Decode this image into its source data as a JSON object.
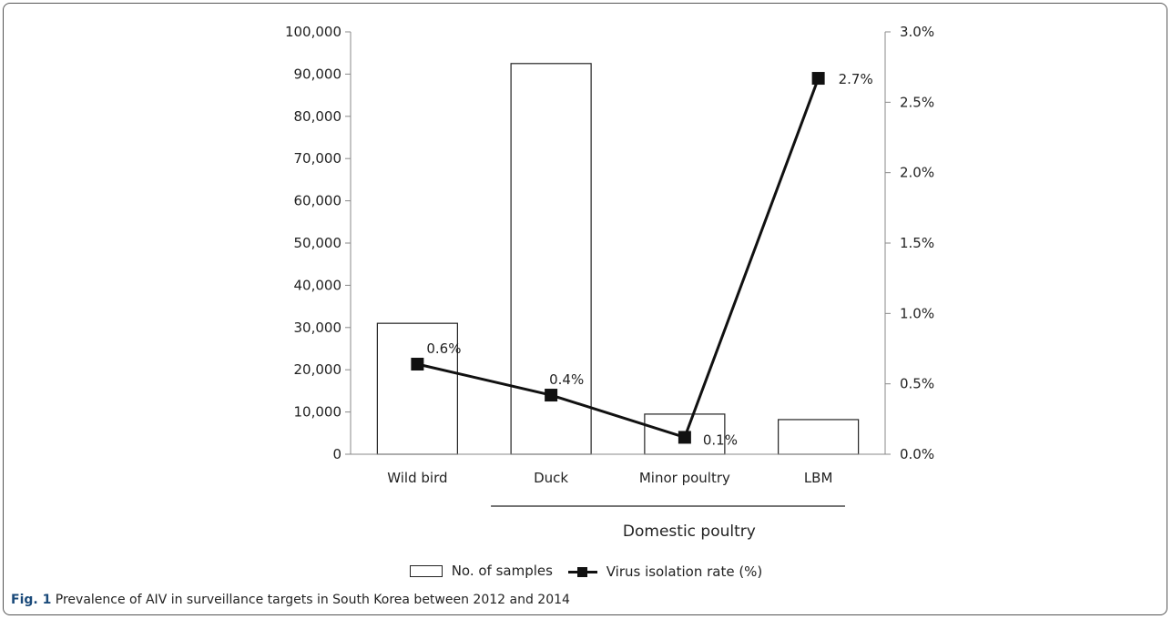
{
  "chart_data": {
    "type": "bar",
    "categories": [
      "Wild bird",
      "Duck",
      "Minor poultry",
      "LBM"
    ],
    "group_label": {
      "text": "Domestic poultry",
      "categories": [
        "Duck",
        "Minor poultry",
        "LBM"
      ]
    },
    "series": [
      {
        "name": "No. of samples",
        "type": "bar",
        "axis": "left",
        "values": [
          31000,
          92500,
          9500,
          8200
        ],
        "color": "#ffffff",
        "stroke": "#222222"
      },
      {
        "name": "Virus isolation rate (%)",
        "type": "line",
        "axis": "right",
        "values": [
          0.64,
          0.42,
          0.12,
          2.67
        ],
        "labels": [
          "0.6%",
          "0.4%",
          "0.1%",
          "2.7%"
        ],
        "color": "#111111"
      }
    ],
    "yaxis_left": {
      "lim": [
        0,
        100000
      ],
      "ticks": [
        "0",
        "10,000",
        "20,000",
        "30,000",
        "40,000",
        "50,000",
        "60,000",
        "70,000",
        "80,000",
        "90,000",
        "100,000"
      ]
    },
    "yaxis_right": {
      "lim": [
        0,
        3
      ],
      "ticks": [
        "0.0%",
        "0.5%",
        "1.0%",
        "1.5%",
        "2.0%",
        "2.5%",
        "3.0%"
      ]
    },
    "grid": false,
    "legend_position": "bottom"
  },
  "legend": {
    "bar_label": "No. of samples",
    "line_label": "Virus isolation rate (%)"
  },
  "caption": {
    "label": "Fig. 1",
    "text": " Prevalence of AIV in surveillance targets in South Korea between 2012 and 2014"
  }
}
